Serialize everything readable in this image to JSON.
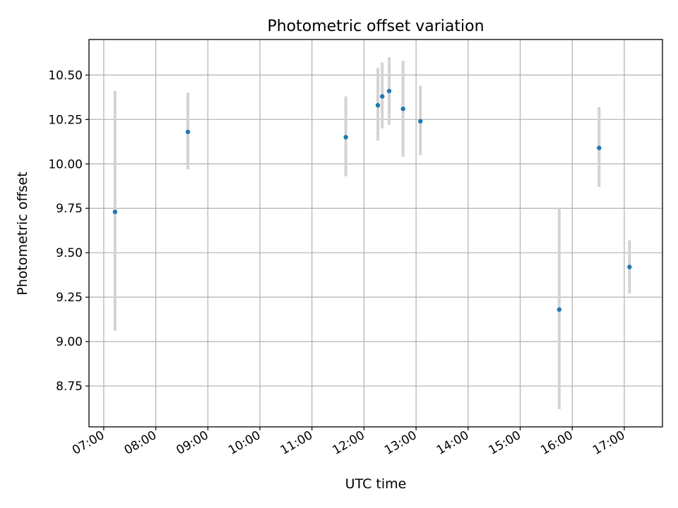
{
  "chart_data": {
    "type": "scatter",
    "title": "Photometric offset variation",
    "xlabel": "UTC time",
    "ylabel": "Photometric offset",
    "x_scale": "time",
    "xlim": [
      "06:43",
      "17:44"
    ],
    "ylim": [
      8.52,
      10.7
    ],
    "grid": true,
    "x_ticks": [
      "07:00",
      "08:00",
      "09:00",
      "10:00",
      "11:00",
      "12:00",
      "13:00",
      "14:00",
      "15:00",
      "16:00",
      "17:00"
    ],
    "y_ticks": [
      "8.75",
      "9.00",
      "9.25",
      "9.50",
      "9.75",
      "10.00",
      "10.25",
      "10.50"
    ],
    "marker_color": "#1f77b4",
    "errorbar_color": "#d3d3d3",
    "points": [
      {
        "time": "07:13",
        "y": 9.73,
        "err_low": 9.06,
        "err_high": 10.41
      },
      {
        "time": "08:37",
        "y": 10.18,
        "err_low": 9.97,
        "err_high": 10.4
      },
      {
        "time": "11:39",
        "y": 10.15,
        "err_low": 9.93,
        "err_high": 10.38
      },
      {
        "time": "12:16",
        "y": 10.33,
        "err_low": 10.13,
        "err_high": 10.54
      },
      {
        "time": "12:21",
        "y": 10.38,
        "err_low": 10.2,
        "err_high": 10.57
      },
      {
        "time": "12:29",
        "y": 10.41,
        "err_low": 10.22,
        "err_high": 10.6
      },
      {
        "time": "12:45",
        "y": 10.31,
        "err_low": 10.04,
        "err_high": 10.58
      },
      {
        "time": "13:05",
        "y": 10.24,
        "err_low": 10.05,
        "err_high": 10.44
      },
      {
        "time": "15:45",
        "y": 9.18,
        "err_low": 8.62,
        "err_high": 9.75
      },
      {
        "time": "16:31",
        "y": 10.09,
        "err_low": 9.87,
        "err_high": 10.32
      },
      {
        "time": "17:06",
        "y": 9.42,
        "err_low": 9.27,
        "err_high": 9.57
      }
    ]
  }
}
